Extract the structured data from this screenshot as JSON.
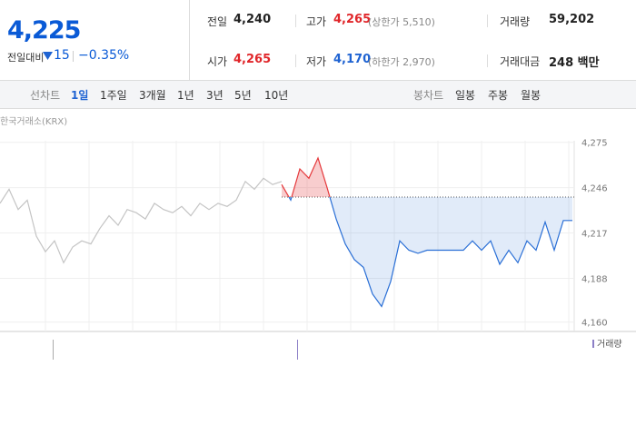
{
  "summary": {
    "price": "4,225",
    "change_label": "전일대비",
    "change": "15",
    "change_pct": "−0.35%"
  },
  "stats": [
    [
      {
        "label": "전일",
        "value": "4,240"
      },
      {
        "label": "고가",
        "value": "4,265",
        "note": "(상한가 5,510)"
      },
      {
        "label": "거래량",
        "value": "59,202"
      }
    ],
    [
      {
        "label": "시가",
        "value": "4,265"
      },
      {
        "label": "저가",
        "value": "4,170",
        "note": "(하한가 2,970)"
      },
      {
        "label": "거래대금",
        "value": "248 백만"
      }
    ]
  ],
  "tabs": {
    "line_label": "선차트",
    "line": [
      "1일",
      "1주일",
      "3개월",
      "1년",
      "3년",
      "5년",
      "10년"
    ],
    "candle_label": "봉차트",
    "candle": [
      "일봉",
      "주봉",
      "월봉"
    ]
  },
  "chart_data": {
    "type": "line",
    "source": "한국거래소(KRX)",
    "volume_label": "거래량",
    "ylim": [
      4154,
      4276
    ],
    "yticks": [
      {
        "value": 4275,
        "label": "4,275"
      },
      {
        "value": 4246,
        "label": "4,246"
      },
      {
        "value": 4217,
        "label": "4,217"
      },
      {
        "value": 4188,
        "label": "4,188"
      },
      {
        "value": 4160,
        "label": "4,160"
      }
    ],
    "baseline": 4240,
    "grid": true,
    "series": [
      {
        "color": "#c4c4c4",
        "values": [
          4236,
          4245,
          4232,
          4238,
          4215,
          4205,
          4212,
          4198,
          4208,
          4212,
          4210,
          4220,
          4228,
          4222,
          4232,
          4230,
          4226,
          4236,
          4232,
          4230,
          4234,
          4228,
          4236,
          4232,
          4236,
          4234,
          4238,
          4250,
          4245,
          4252,
          4248,
          4250,
          null,
          null,
          null,
          null,
          null,
          null,
          null,
          null,
          null,
          null,
          null,
          null,
          null,
          null,
          null,
          null,
          null,
          null,
          null,
          null,
          null,
          null,
          null,
          null,
          null,
          null,
          null,
          null,
          null,
          null,
          null,
          null
        ]
      },
      {
        "color": "#2a6fd6",
        "up_color": "#e5383b",
        "values": [
          null,
          null,
          null,
          null,
          null,
          null,
          null,
          null,
          null,
          null,
          null,
          null,
          null,
          null,
          null,
          null,
          null,
          null,
          null,
          null,
          null,
          null,
          null,
          null,
          null,
          null,
          null,
          null,
          null,
          null,
          null,
          4248,
          4238,
          4258,
          4252,
          4265,
          4246,
          4226,
          4210,
          4200,
          4195,
          4178,
          4170,
          4186,
          4212,
          4206,
          4204,
          4206,
          4206,
          4206,
          4206,
          4206,
          4212,
          4206,
          4212,
          4197,
          4206,
          4198,
          4212,
          4206,
          4224,
          4206,
          4225,
          4225
        ]
      }
    ]
  }
}
